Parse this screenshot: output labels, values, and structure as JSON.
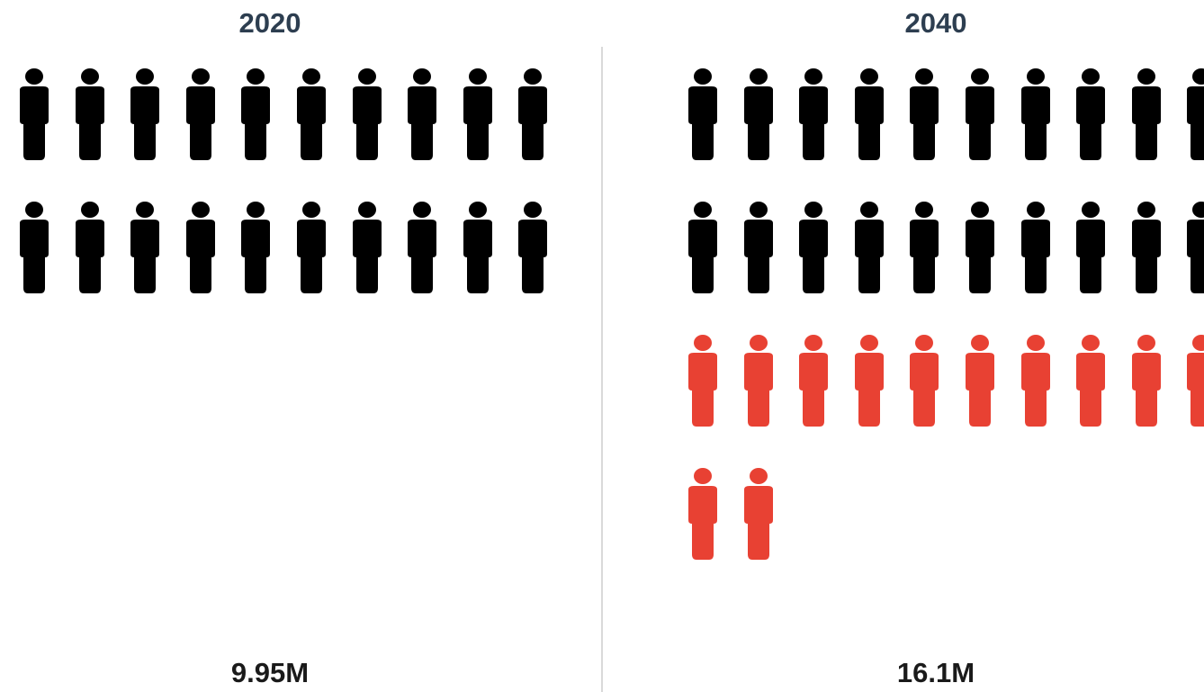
{
  "chart_data": {
    "type": "pictograph",
    "panels": [
      {
        "title": "2020",
        "total_label": "9.95M",
        "icons": [
          {
            "category": "existing",
            "count": 20
          }
        ]
      },
      {
        "title": "2040",
        "total_label": "16.1M",
        "icons": [
          {
            "category": "existing",
            "count": 20
          },
          {
            "category": "added",
            "count": 12
          }
        ]
      }
    ],
    "icons_per_row": 10,
    "colors": {
      "existing": "#000000",
      "added": "#e84133",
      "title": "#2d3e50",
      "divider": "#d9d9d9"
    }
  }
}
